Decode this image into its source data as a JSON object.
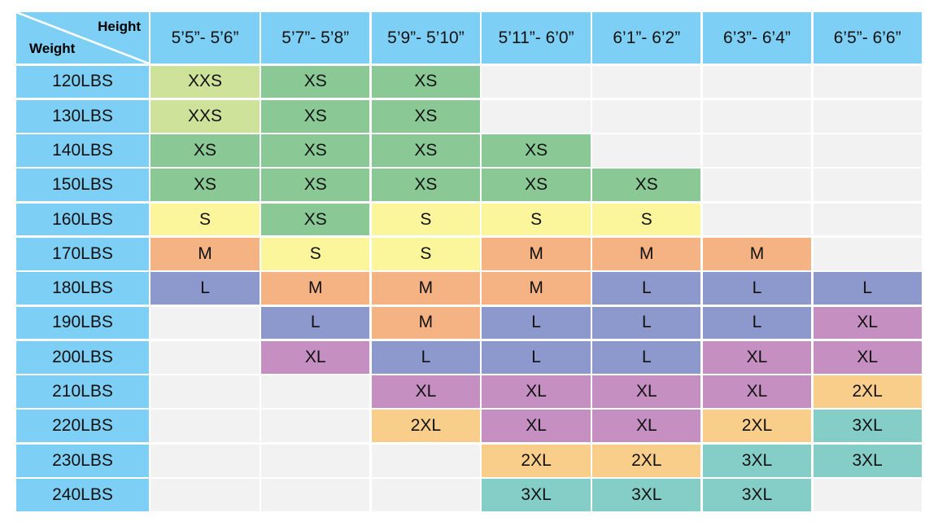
{
  "corner": {
    "height_label": "Height",
    "weight_label": "Weight"
  },
  "heights": [
    "5’5”- 5’6”",
    "5’7”- 5’8”",
    "5’9”- 5’10”",
    "5’11”- 6’0”",
    "6’1”- 6’2”",
    "6’3”- 6’4”",
    "6’5”- 6’6”"
  ],
  "rows": [
    {
      "weight": "120LBS",
      "sizes": [
        "XXS",
        "XS",
        "XS",
        "",
        "",
        "",
        ""
      ]
    },
    {
      "weight": "130LBS",
      "sizes": [
        "XXS",
        "XS",
        "XS",
        "",
        "",
        "",
        ""
      ]
    },
    {
      "weight": "140LBS",
      "sizes": [
        "XS",
        "XS",
        "XS",
        "XS",
        "",
        "",
        ""
      ]
    },
    {
      "weight": "150LBS",
      "sizes": [
        "XS",
        "XS",
        "XS",
        "XS",
        "XS",
        "",
        ""
      ]
    },
    {
      "weight": "160LBS",
      "sizes": [
        "S",
        "XS",
        "S",
        "S",
        "S",
        "",
        ""
      ]
    },
    {
      "weight": "170LBS",
      "sizes": [
        "M",
        "S",
        "S",
        "M",
        "M",
        "M",
        ""
      ]
    },
    {
      "weight": "180LBS",
      "sizes": [
        "L",
        "M",
        "M",
        "M",
        "L",
        "L",
        "L"
      ]
    },
    {
      "weight": "190LBS",
      "sizes": [
        "",
        "L",
        "M",
        "L",
        "L",
        "L",
        "XL"
      ]
    },
    {
      "weight": "200LBS",
      "sizes": [
        "",
        "XL",
        "L",
        "L",
        "L",
        "XL",
        "XL"
      ]
    },
    {
      "weight": "210LBS",
      "sizes": [
        "",
        "",
        "XL",
        "XL",
        "XL",
        "XL",
        "2XL"
      ]
    },
    {
      "weight": "220LBS",
      "sizes": [
        "",
        "",
        "2XL",
        "XL",
        "XL",
        "2XL",
        "3XL"
      ]
    },
    {
      "weight": "230LBS",
      "sizes": [
        "",
        "",
        "",
        "2XL",
        "2XL",
        "3XL",
        "3XL"
      ]
    },
    {
      "weight": "240LBS",
      "sizes": [
        "",
        "",
        "",
        "3XL",
        "3XL",
        "3XL",
        ""
      ]
    }
  ],
  "colors": {
    "header": "#7ecff5",
    "empty": "#f2f2f2",
    "XXS": "#cfe29a",
    "XS": "#8ac996",
    "S": "#fbf59b",
    "M": "#f5b282",
    "L": "#8d98cd",
    "XL": "#c58fc2",
    "2XL": "#f9cd8a",
    "3XL": "#85cec8"
  }
}
